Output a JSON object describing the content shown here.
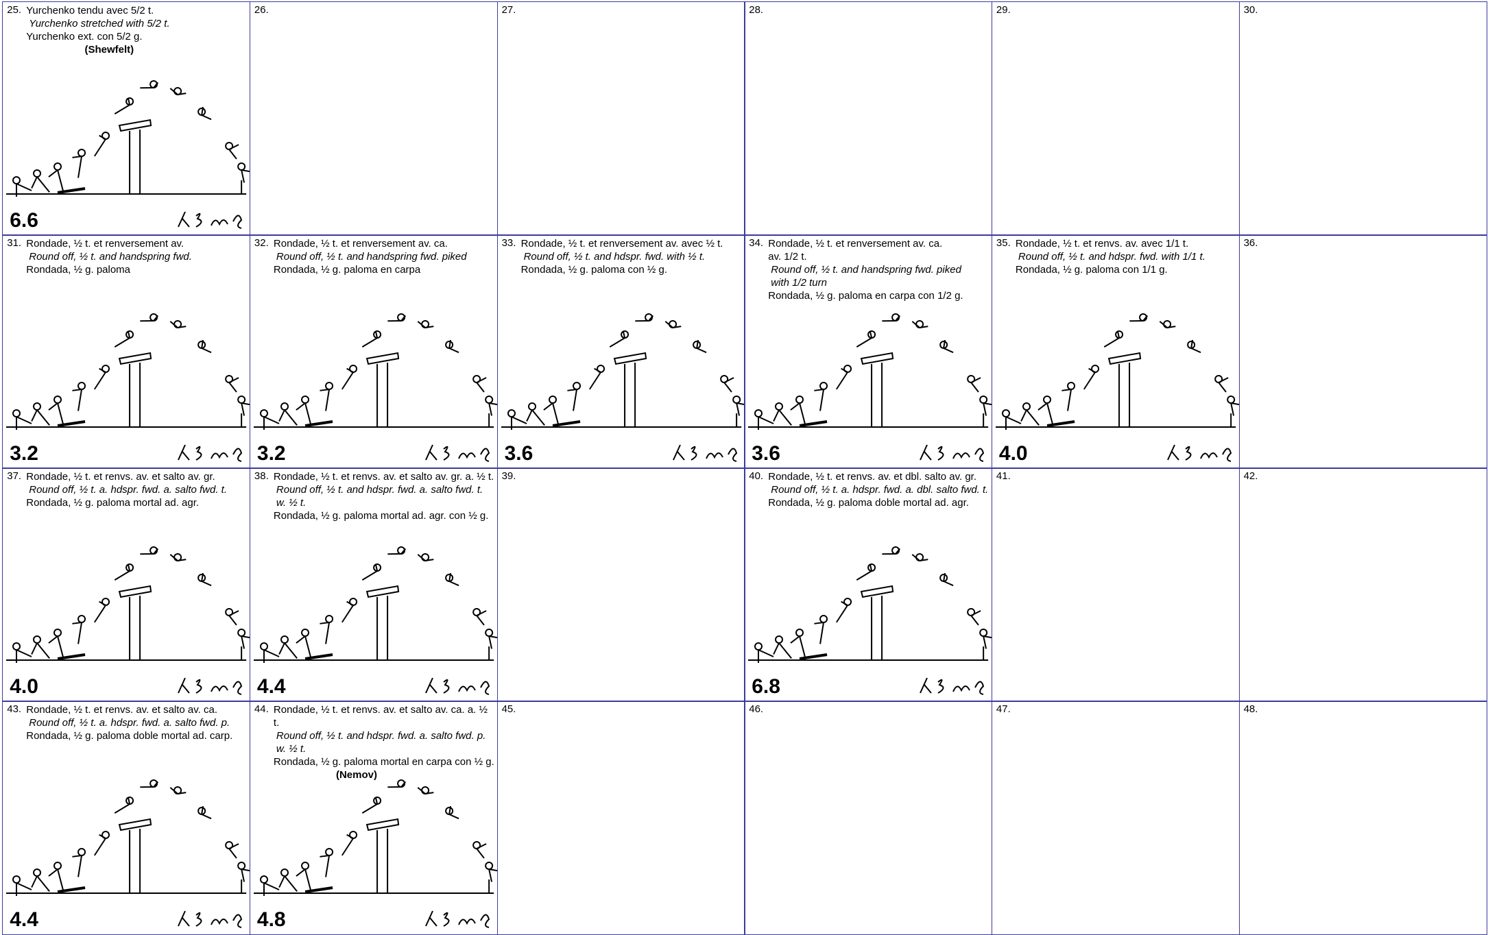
{
  "cells": [
    {
      "number": "25.",
      "lines": [
        {
          "text": "Yurchenko tendu avec 5/2 t.",
          "style": "normal"
        },
        {
          "text": "Yurchenko stretched with 5/2 t.",
          "style": "italic"
        },
        {
          "text": "Yurchenko ext. con 5/2 g.",
          "style": "normal"
        },
        {
          "text": "(Shewfelt)",
          "style": "bold"
        }
      ],
      "value": "6.6"
    },
    {
      "number": "26.",
      "lines": []
    },
    {
      "number": "27.",
      "lines": []
    },
    {
      "number": "28.",
      "lines": []
    },
    {
      "number": "29.",
      "lines": []
    },
    {
      "number": "30.",
      "lines": []
    },
    {
      "number": "31.",
      "lines": [
        {
          "text": "Rondade, ½ t. et renversement av.",
          "style": "normal"
        },
        {
          "text": "Round off, ½ t. and handspring fwd.",
          "style": "italic"
        },
        {
          "text": "Rondada, ½ g. paloma",
          "style": "normal"
        }
      ],
      "value": "3.2"
    },
    {
      "number": "32.",
      "lines": [
        {
          "text": "Rondade, ½ t. et renversement av. ca.",
          "style": "normal"
        },
        {
          "text": "Round off, ½ t. and handspring fwd. piked",
          "style": "italic"
        },
        {
          "text": "Rondada, ½ g. paloma en carpa",
          "style": "normal"
        }
      ],
      "value": "3.2"
    },
    {
      "number": "33.",
      "lines": [
        {
          "text": "Rondade, ½ t. et renversement av. avec ½ t.",
          "style": "normal"
        },
        {
          "text": "Round off, ½ t. and hdspr. fwd. with ½ t.",
          "style": "italic"
        },
        {
          "text": "Rondada, ½ g. paloma con ½ g.",
          "style": "normal"
        }
      ],
      "value": "3.6"
    },
    {
      "number": "34.",
      "lines": [
        {
          "text": "Rondade, ½ t. et renversement av. ca.",
          "style": "normal"
        },
        {
          "text": "av. 1/2 t.",
          "style": "normal"
        },
        {
          "text": "Round off, ½ t. and handspring fwd. piked",
          "style": "italic"
        },
        {
          "text": "with 1/2 turn",
          "style": "italic"
        },
        {
          "text": "Rondada, ½ g. paloma en carpa con 1/2 g.",
          "style": "normal"
        }
      ],
      "value": "3.6"
    },
    {
      "number": "35.",
      "lines": [
        {
          "text": "Rondade, ½ t. et renvs. av. avec 1/1 t.",
          "style": "normal"
        },
        {
          "text": "Round off, ½ t. and hdspr. fwd. with 1/1 t.",
          "style": "italic"
        },
        {
          "text": "Rondada, ½ g. paloma con 1/1 g.",
          "style": "normal"
        }
      ],
      "value": "4.0"
    },
    {
      "number": "36.",
      "lines": []
    },
    {
      "number": "37.",
      "lines": [
        {
          "text": "Rondade, ½ t. et renvs. av. et salto av. gr.",
          "style": "normal"
        },
        {
          "text": "Round off, ½ t. a. hdspr. fwd. a. salto fwd. t.",
          "style": "italic"
        },
        {
          "text": "Rondada, ½ g. paloma mortal ad. agr.",
          "style": "normal"
        }
      ],
      "value": "4.0"
    },
    {
      "number": "38.",
      "lines": [
        {
          "text": "Rondade, ½ t. et renvs. av. et salto av. gr. a. ½ t.",
          "style": "normal"
        },
        {
          "text": "Round off, ½ t. and hdspr. fwd. a. salto fwd. t. w. ½ t.",
          "style": "italic"
        },
        {
          "text": "Rondada, ½ g. paloma mortal ad. agr. con ½ g.",
          "style": "normal"
        }
      ],
      "value": "4.4"
    },
    {
      "number": "39.",
      "lines": []
    },
    {
      "number": "40.",
      "lines": [
        {
          "text": "Rondade, ½ t. et renvs. av. et dbl. salto av. gr.",
          "style": "normal"
        },
        {
          "text": "Round off, ½ t. a. hdspr. fwd. a. dbl. salto fwd. t.",
          "style": "italic"
        },
        {
          "text": "Rondada, ½ g. paloma doble mortal ad. agr.",
          "style": "normal"
        }
      ],
      "value": "6.8"
    },
    {
      "number": "41.",
      "lines": []
    },
    {
      "number": "42.",
      "lines": []
    },
    {
      "number": "43.",
      "lines": [
        {
          "text": "Rondade, ½ t. et renvs. av. et salto av. ca.",
          "style": "normal"
        },
        {
          "text": "Round off, ½ t. a. hdspr. fwd. a. salto fwd. p.",
          "style": "italic"
        },
        {
          "text": "Rondada, ½ g. paloma doble mortal ad. carp.",
          "style": "normal"
        }
      ],
      "value": "4.4"
    },
    {
      "number": "44.",
      "lines": [
        {
          "text": "Rondade, ½ t. et renvs. av. et salto av. ca. a. ½ t.",
          "style": "normal"
        },
        {
          "text": "Round off, ½ t. and hdspr. fwd. a. salto fwd. p. w. ½ t.",
          "style": "italic"
        },
        {
          "text": "Rondada, ½ g. paloma mortal en carpa con ½ g.",
          "style": "normal"
        },
        {
          "text": "(Nemov)",
          "style": "bold"
        }
      ],
      "value": "4.8"
    },
    {
      "number": "45.",
      "lines": []
    },
    {
      "number": "46.",
      "lines": []
    },
    {
      "number": "47.",
      "lines": []
    },
    {
      "number": "48.",
      "lines": []
    }
  ]
}
